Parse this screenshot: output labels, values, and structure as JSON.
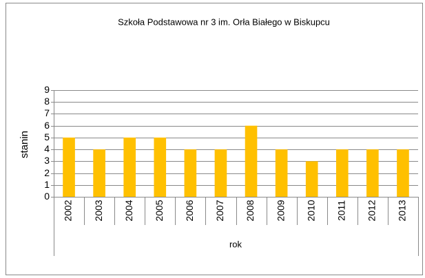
{
  "chart_data": {
    "type": "bar",
    "title": "Szkoła Podstawowa nr 3 im. Orła Białego w Biskupcu",
    "categories": [
      "2002",
      "2003",
      "2004",
      "2005",
      "2006",
      "2007",
      "2008",
      "2009",
      "2010",
      "2011",
      "2012",
      "2013"
    ],
    "values": [
      5,
      4,
      5,
      5,
      4,
      4,
      6,
      4,
      3,
      4,
      4,
      4
    ],
    "color": "#ffc000",
    "xlabel": "rok",
    "ylabel": "stanin",
    "ylim": [
      0,
      9
    ],
    "yticks": [
      0,
      1,
      2,
      3,
      4,
      5,
      6,
      7,
      8,
      9
    ],
    "grid": true
  }
}
